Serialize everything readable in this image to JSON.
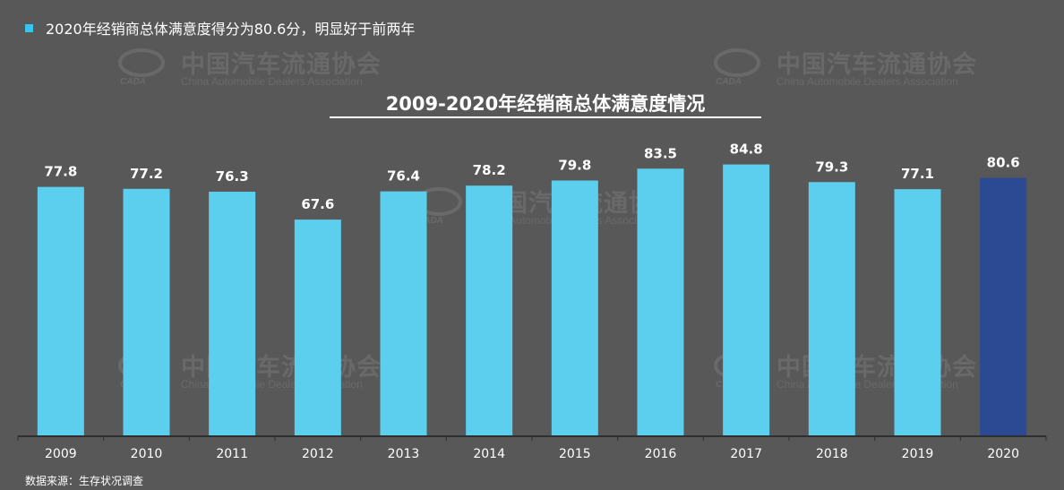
{
  "header": {
    "subtitle": "2020年经销商总体满意度得分为80.6分，明显好于前两年"
  },
  "watermark": {
    "cn": "中国汽车流通协会",
    "en": "China Automobile Dealers Association",
    "logo": "CADA"
  },
  "footer": {
    "source": "数据来源：生存状况调查"
  },
  "colors": {
    "background": "#585858",
    "bar": "#5ccfee",
    "highlight": "#2b4a93",
    "axis": "#2f2f2f",
    "text": "#ffffff"
  },
  "chart_data": {
    "type": "bar",
    "title": "2009-2020年经销商总体满意度情况",
    "categories": [
      "2009",
      "2010",
      "2011",
      "2012",
      "2013",
      "2014",
      "2015",
      "2016",
      "2017",
      "2018",
      "2019",
      "2020"
    ],
    "values": [
      77.8,
      77.2,
      76.3,
      67.6,
      76.4,
      78.2,
      79.8,
      83.5,
      84.8,
      79.3,
      77.1,
      80.6
    ],
    "highlight_index": 11,
    "ylim": [
      0,
      90
    ],
    "grid": false,
    "legend": "none",
    "xlabel": "",
    "ylabel": ""
  }
}
